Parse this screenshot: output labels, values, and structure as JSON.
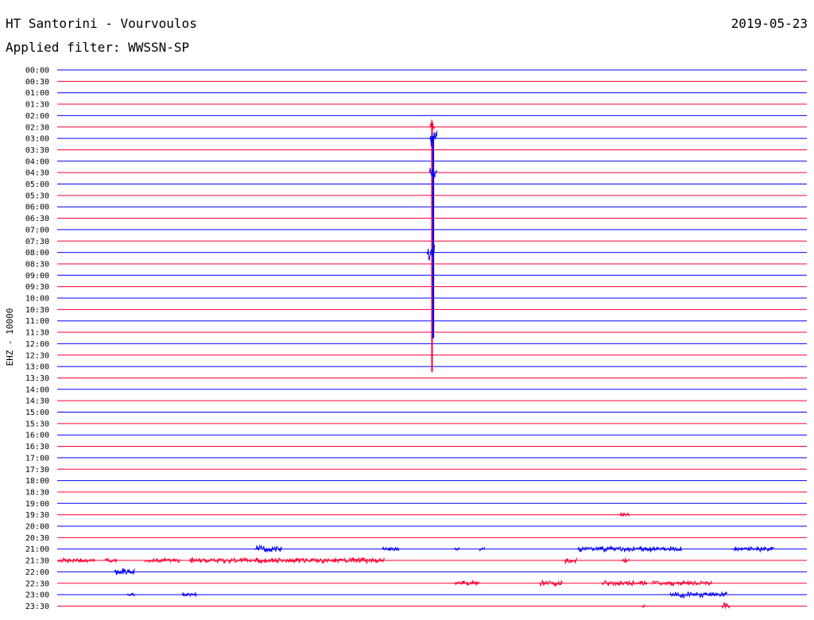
{
  "header": {
    "station": "HT Santorini - Vourvoulos",
    "date": "2019-05-23",
    "filter": "Applied filter: WWSSN-SP"
  },
  "chart_data": {
    "type": "line",
    "title": "HT Santorini - Vourvoulos",
    "ylabel": "EHZ - 10000",
    "xlabel": "",
    "rows": [
      "00:00",
      "00:30",
      "01:00",
      "01:30",
      "02:00",
      "02:30",
      "03:00",
      "03:30",
      "04:00",
      "04:30",
      "05:00",
      "05:30",
      "06:00",
      "06:30",
      "07:00",
      "07:30",
      "08:00",
      "08:30",
      "09:00",
      "09:30",
      "10:00",
      "10:30",
      "11:00",
      "11:30",
      "12:00",
      "12:30",
      "13:00",
      "13:30",
      "14:00",
      "14:30",
      "15:00",
      "15:30",
      "16:00",
      "16:30",
      "17:00",
      "17:30",
      "18:00",
      "18:30",
      "19:00",
      "19:30",
      "20:00",
      "20:30",
      "21:00",
      "21:30",
      "22:00",
      "22:30",
      "23:00",
      "23:30"
    ],
    "row_minutes": 30,
    "colors": {
      "odd": "#0000ff",
      "even": "#ff0033"
    },
    "events": [
      {
        "row": "02:30",
        "start": 14.9,
        "end": 15.1,
        "amp": 1.0,
        "span_top": 0.5,
        "span_bottom": 21.5,
        "color": "#ff0033"
      },
      {
        "row": "03:00",
        "start": 14.9,
        "end": 15.2,
        "amp": 1.0,
        "span_top": 0.2,
        "span_bottom": 17.5,
        "color": "#0000ff"
      },
      {
        "row": "04:30",
        "start": 14.9,
        "end": 15.2,
        "amp": 1.0,
        "span_top": 0.1,
        "span_bottom": 14.5,
        "color": "#0000ff"
      },
      {
        "row": "08:00",
        "start": 14.8,
        "end": 15.1,
        "amp": 1.0,
        "span_top": 0.2,
        "span_bottom": 0.2,
        "color": "#0000ff"
      },
      {
        "row": "19:30",
        "start": 22.5,
        "end": 22.9,
        "amp": 0.35,
        "color": "#ff0033"
      },
      {
        "row": "21:00",
        "start": 7.9,
        "end": 9.0,
        "amp": 0.45,
        "color": "#0000ff"
      },
      {
        "row": "21:00",
        "start": 13.0,
        "end": 13.7,
        "amp": 0.25,
        "color": "#0000ff"
      },
      {
        "row": "21:00",
        "start": 15.9,
        "end": 16.1,
        "amp": 0.25,
        "color": "#0000ff"
      },
      {
        "row": "21:00",
        "start": 16.9,
        "end": 17.1,
        "amp": 0.35,
        "color": "#0000ff"
      },
      {
        "row": "21:00",
        "start": 20.8,
        "end": 25.0,
        "amp": 0.35,
        "color": "#0000ff"
      },
      {
        "row": "21:00",
        "start": 27.0,
        "end": 28.7,
        "amp": 0.3,
        "color": "#0000ff"
      },
      {
        "row": "21:30",
        "start": 0.0,
        "end": 1.5,
        "amp": 0.25,
        "color": "#ff0033"
      },
      {
        "row": "21:30",
        "start": 1.9,
        "end": 2.4,
        "amp": 0.3,
        "color": "#ff0033"
      },
      {
        "row": "21:30",
        "start": 3.5,
        "end": 4.9,
        "amp": 0.25,
        "color": "#ff0033"
      },
      {
        "row": "21:30",
        "start": 5.3,
        "end": 13.1,
        "amp": 0.35,
        "color": "#ff0033"
      },
      {
        "row": "21:30",
        "start": 20.3,
        "end": 20.8,
        "amp": 0.4,
        "color": "#ff0033"
      },
      {
        "row": "21:30",
        "start": 22.6,
        "end": 22.9,
        "amp": 0.3,
        "color": "#ff0033"
      },
      {
        "row": "22:00",
        "start": 2.3,
        "end": 3.1,
        "amp": 0.4,
        "color": "#0000ff"
      },
      {
        "row": "22:30",
        "start": 15.9,
        "end": 16.9,
        "amp": 0.3,
        "color": "#ff0033"
      },
      {
        "row": "22:30",
        "start": 19.3,
        "end": 20.2,
        "amp": 0.4,
        "color": "#ff0033"
      },
      {
        "row": "22:30",
        "start": 21.8,
        "end": 23.6,
        "amp": 0.35,
        "color": "#ff0033"
      },
      {
        "row": "22:30",
        "start": 23.8,
        "end": 26.2,
        "amp": 0.3,
        "color": "#ff0033"
      },
      {
        "row": "23:00",
        "start": 2.8,
        "end": 3.1,
        "amp": 0.2,
        "color": "#0000ff"
      },
      {
        "row": "23:00",
        "start": 5.0,
        "end": 5.6,
        "amp": 0.25,
        "color": "#0000ff"
      },
      {
        "row": "23:00",
        "start": 24.5,
        "end": 26.8,
        "amp": 0.35,
        "color": "#0000ff"
      },
      {
        "row": "23:30",
        "start": 23.4,
        "end": 23.5,
        "amp": 0.2,
        "color": "#ff0033"
      },
      {
        "row": "23:30",
        "start": 26.6,
        "end": 26.9,
        "amp": 0.45,
        "color": "#ff0033"
      }
    ]
  }
}
